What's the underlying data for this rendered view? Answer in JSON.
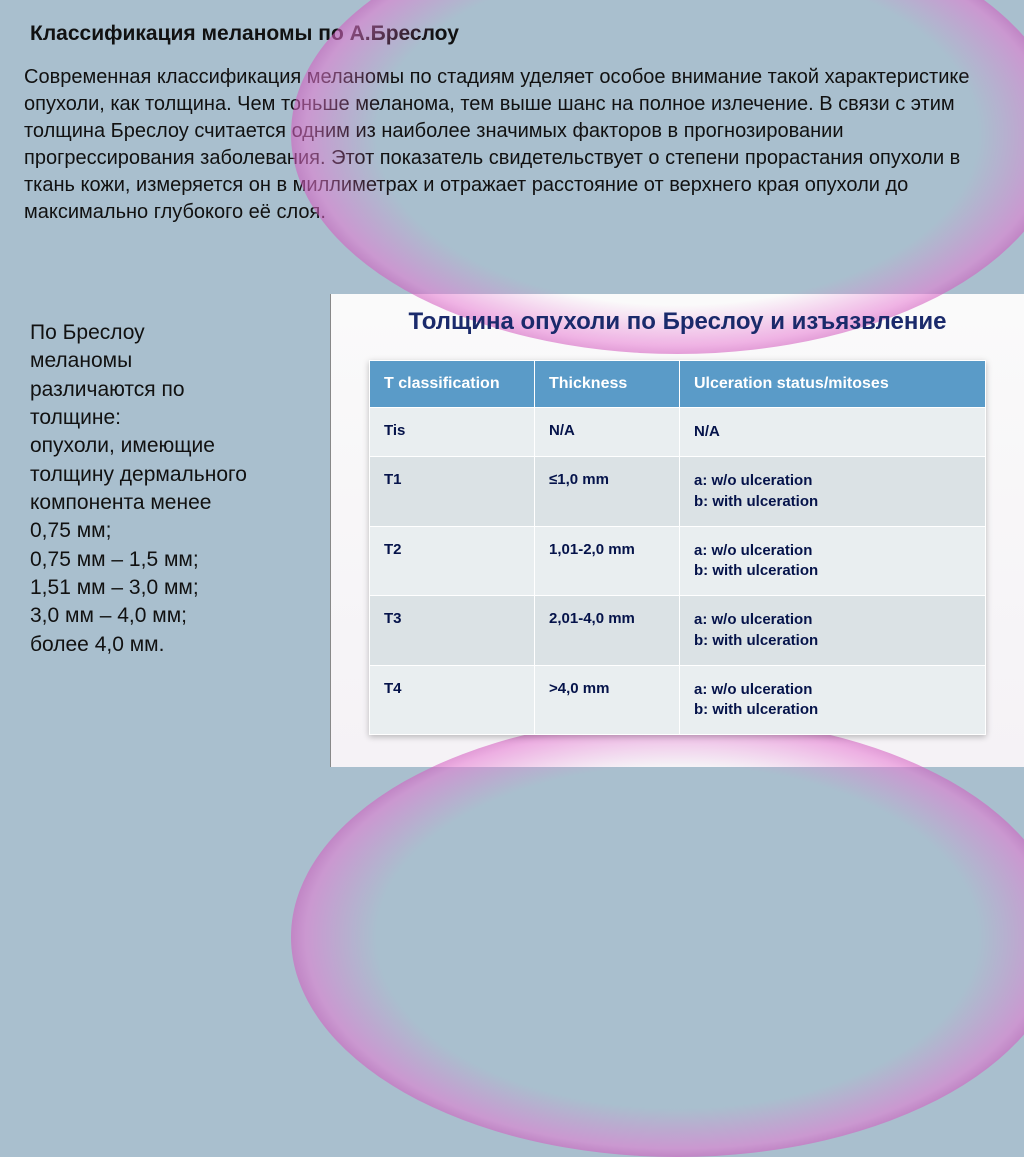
{
  "heading": "Классификация меланомы по А.Бреслоу",
  "intro": "Современная классификация меланомы по стадиям уделяет особое внимание такой характеристике опухоли, как толщина. Чем тоньше меланома, тем выше шанс на полное излечение. В связи с этим толщина Бреслоу считается одним из наиболее значимых факторов в прогнозировании прогрессирования заболевания. Этот показатель свидетельствует о степени прорастания опухоли в ткань кожи, измеряется он в миллиметрах и отражает расстояние от верхнего края опухоли до максимально глубокого её слоя.",
  "left": {
    "lines": [
      "По Бреслоу",
      "меланомы",
      "различаются по",
      "толщине:",
      "опухоли, имеющие",
      "толщину дермального",
      "компонента менее",
      "0,75 мм;",
      "0,75 мм – 1,5 мм;",
      "1,51 мм – 3,0 мм;",
      "3,0 мм – 4,0 мм;",
      "более 4,0 мм."
    ]
  },
  "panel": {
    "title": "Толщина опухоли по Бреслоу и изъязвление",
    "title_color": "#1a2a6b",
    "columns": [
      "T classification",
      "Thickness",
      "Ulceration status/mitoses"
    ],
    "rows": [
      {
        "c1": "Tis",
        "c2": "N/A",
        "c3": "N/A"
      },
      {
        "c1": "T1",
        "c2": "≤1,0 mm",
        "c3": "a: w/o ulceration\nb: with ulceration"
      },
      {
        "c1": "T2",
        "c2": "1,01-2,0 mm",
        "c3": "a: w/o ulceration\nb: with ulceration"
      },
      {
        "c1": "T3",
        "c2": "2,01-4,0 mm",
        "c3": "a: w/o ulceration\nb: with ulceration"
      },
      {
        "c1": "T4",
        "c2": ">4,0 mm",
        "c3": "a: w/o ulceration\nb: with ulceration"
      }
    ],
    "header_bg": "#5a9bc8",
    "header_fg": "#ffffff",
    "row_odd_bg": "#e9eef0",
    "row_even_bg": "#dbe2e5",
    "cell_fg": "#05134a"
  },
  "colors": {
    "page_bg": "#a9bfce",
    "panel_bg": "#f7f4f7",
    "accent_magenta": "#c948b2"
  }
}
